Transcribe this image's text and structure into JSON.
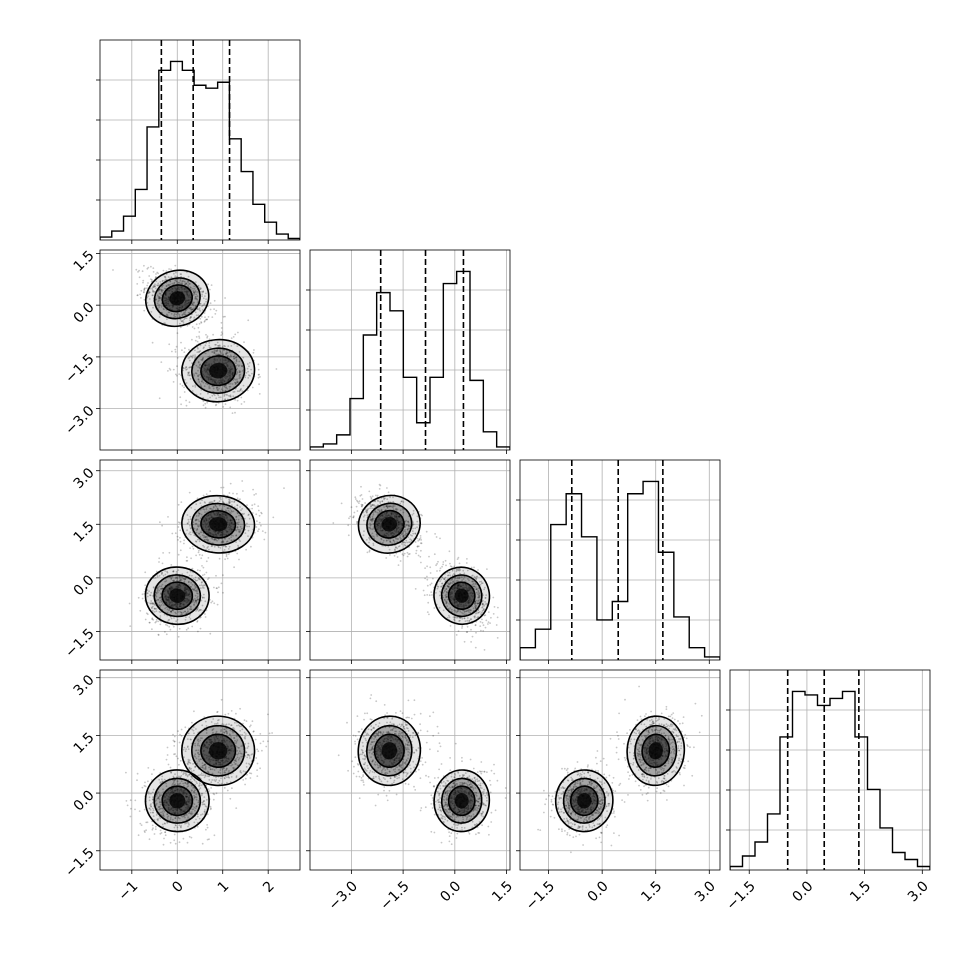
{
  "chart_data": {
    "type": "corner",
    "n_params": 4,
    "colors": {
      "ink": "#000000",
      "grid": "#b0b0b0",
      "background": "#ffffff"
    },
    "ranges": [
      [
        -1.7,
        2.7
      ],
      [
        -4.2,
        1.6
      ],
      [
        -2.3,
        3.3
      ],
      [
        -2.0,
        3.2
      ]
    ],
    "ticks": [
      [
        -1,
        0,
        1,
        2
      ],
      [
        -3.0,
        -1.5,
        0.0,
        1.5
      ],
      [
        -1.5,
        0.0,
        1.5,
        3.0
      ],
      [
        -1.5,
        0.0,
        1.5,
        3.0
      ]
    ],
    "tick_labels": [
      [
        "−1",
        "0",
        "1",
        "2"
      ],
      [
        "−3.0",
        "−1.5",
        "0.0",
        "1.5"
      ],
      [
        "−1.5",
        "0.0",
        "1.5",
        "3.0"
      ],
      [
        "−1.5",
        "0.0",
        "1.5",
        "3.0"
      ]
    ],
    "quantiles": [
      [
        -0.35,
        0.35,
        1.15
      ],
      [
        -2.15,
        -0.85,
        0.25
      ],
      [
        -0.85,
        0.45,
        1.7
      ],
      [
        -0.5,
        0.45,
        1.35
      ]
    ],
    "histograms": [
      [
        1,
        3,
        8,
        17,
        38,
        57,
        60,
        57,
        52,
        51,
        53,
        34,
        23,
        12,
        6,
        2,
        0.5
      ],
      [
        1,
        2,
        5,
        17,
        38,
        52,
        46,
        24,
        9,
        24,
        55,
        59,
        23,
        6,
        1
      ],
      [
        4,
        10,
        44,
        54,
        40,
        13,
        19,
        54,
        58,
        35,
        14,
        4,
        1
      ],
      [
        1,
        4,
        8,
        16,
        38,
        51,
        50,
        47,
        49,
        51,
        38,
        23,
        12,
        5,
        3,
        1
      ]
    ],
    "modes": [
      {
        "weight": 0.5,
        "mean": [
          0.0,
          0.2,
          -0.5,
          -0.2
        ],
        "sd": [
          0.35,
          0.4,
          0.4,
          0.4
        ],
        "corr": [
          [
            0,
            1,
            -0.4
          ],
          [
            0,
            2,
            0.1
          ],
          [
            0,
            3,
            0.1
          ],
          [
            1,
            2,
            -0.4
          ],
          [
            1,
            3,
            0.1
          ],
          [
            2,
            3,
            0.1
          ]
        ]
      },
      {
        "weight": 0.5,
        "mean": [
          0.9,
          -1.9,
          1.5,
          1.1
        ],
        "sd": [
          0.4,
          0.45,
          0.4,
          0.45
        ],
        "corr": [
          [
            0,
            1,
            -0.1
          ],
          [
            0,
            2,
            0.1
          ],
          [
            0,
            3,
            0.1
          ],
          [
            1,
            2,
            -0.4
          ],
          [
            1,
            3,
            0.1
          ],
          [
            2,
            3,
            0.1
          ]
        ]
      }
    ]
  }
}
